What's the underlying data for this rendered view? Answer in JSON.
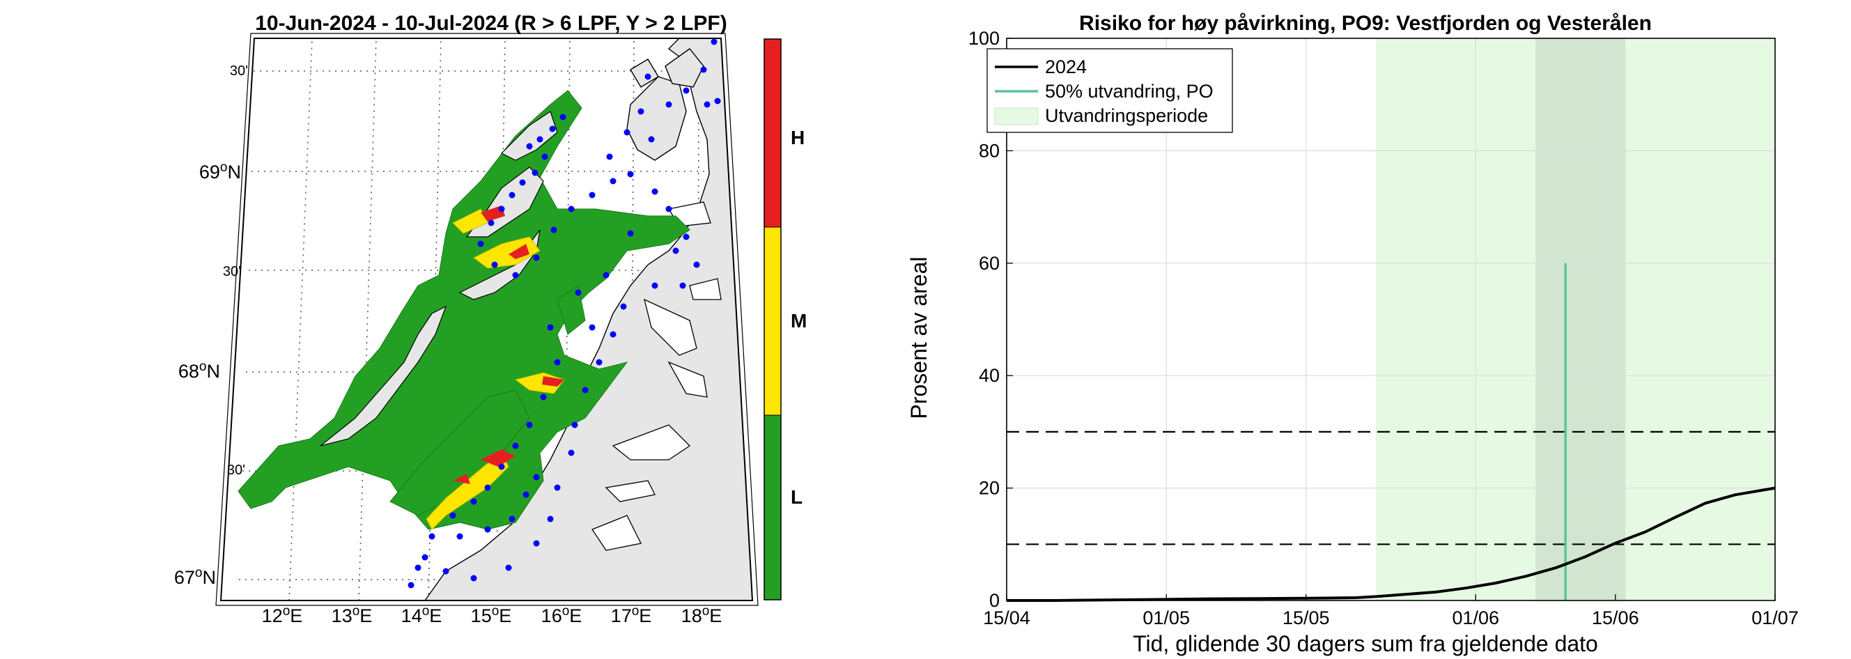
{
  "map_panel": {
    "title": "10-Jun-2024  - 10-Jul-2024  (R > 6 LPF, Y > 2 LPF)",
    "lon_ticks": [
      {
        "deg": "12",
        "unit": "E"
      },
      {
        "deg": "13",
        "unit": "E"
      },
      {
        "deg": "14",
        "unit": "E"
      },
      {
        "deg": "15",
        "unit": "E"
      },
      {
        "deg": "16",
        "unit": "E"
      },
      {
        "deg": "17",
        "unit": "E"
      },
      {
        "deg": "18",
        "unit": "E"
      }
    ],
    "lat_ticks": [
      {
        "deg": "67",
        "unit": "N"
      },
      {
        "deg": "68",
        "unit": "N"
      },
      {
        "deg": "69",
        "unit": "N"
      }
    ],
    "minute_ticks": [
      "30'",
      "30'",
      "30'"
    ],
    "colorbar": {
      "labels": [
        "H",
        "M",
        "L"
      ],
      "colors": {
        "H": "#e62020",
        "M": "#ffe600",
        "L": "#23a023"
      }
    },
    "colors": {
      "sea": "#ffffff",
      "land": "#e6e6e6",
      "zone_green": "#23a023",
      "zone_yellow": "#ffe600",
      "zone_red": "#e62020",
      "sites": "#0000ff"
    }
  },
  "chart_data": {
    "type": "line",
    "title": "Risiko for høy påvirkning, PO9: Vestfjorden og Vesterålen",
    "xlabel": "Tid, glidende 30 dagers sum fra gjeldende dato",
    "ylabel": "Prosent av areal",
    "x_tick_labels": [
      "15/04",
      "01/05",
      "15/05",
      "01/06",
      "15/06",
      "01/07"
    ],
    "x_tick_dates": [
      "2024-04-15",
      "2024-05-01",
      "2024-05-15",
      "2024-06-01",
      "2024-06-15",
      "2024-07-01"
    ],
    "xlim": [
      "2024-04-15",
      "2024-07-01"
    ],
    "ylim": [
      0,
      100
    ],
    "y_ticks": [
      0,
      20,
      40,
      60,
      80,
      100
    ],
    "grid": true,
    "legend_position": "top-left",
    "series": [
      {
        "name": "2024",
        "color": "#000000",
        "x": [
          "2024-04-15",
          "2024-04-20",
          "2024-04-25",
          "2024-05-01",
          "2024-05-05",
          "2024-05-10",
          "2024-05-15",
          "2024-05-20",
          "2024-05-22",
          "2024-05-25",
          "2024-05-28",
          "2024-05-31",
          "2024-06-03",
          "2024-06-06",
          "2024-06-09",
          "2024-06-12",
          "2024-06-15",
          "2024-06-18",
          "2024-06-21",
          "2024-06-24",
          "2024-06-27",
          "2024-06-30",
          "2024-07-01"
        ],
        "y": [
          0,
          0,
          0.1,
          0.2,
          0.3,
          0.35,
          0.4,
          0.5,
          0.7,
          1.1,
          1.5,
          2.2,
          3.1,
          4.3,
          5.8,
          7.8,
          10.2,
          12.2,
          14.8,
          17.3,
          18.8,
          19.7,
          20
        ]
      }
    ],
    "marker_line": {
      "name": "50% utvandring, PO",
      "date": "2024-06-10",
      "y_top": 60,
      "color": "#5cc39a"
    },
    "shaded_periods": [
      {
        "name": "Utvandringsperiode",
        "start": "2024-05-22",
        "end": "2024-07-01",
        "color": "#e6fae3"
      },
      {
        "start": "2024-06-07",
        "end": "2024-06-16",
        "color": "#d2e5d0"
      }
    ],
    "threshold_lines": [
      {
        "y": 10,
        "style": "dashed"
      },
      {
        "y": 30,
        "style": "dashed"
      }
    ]
  }
}
